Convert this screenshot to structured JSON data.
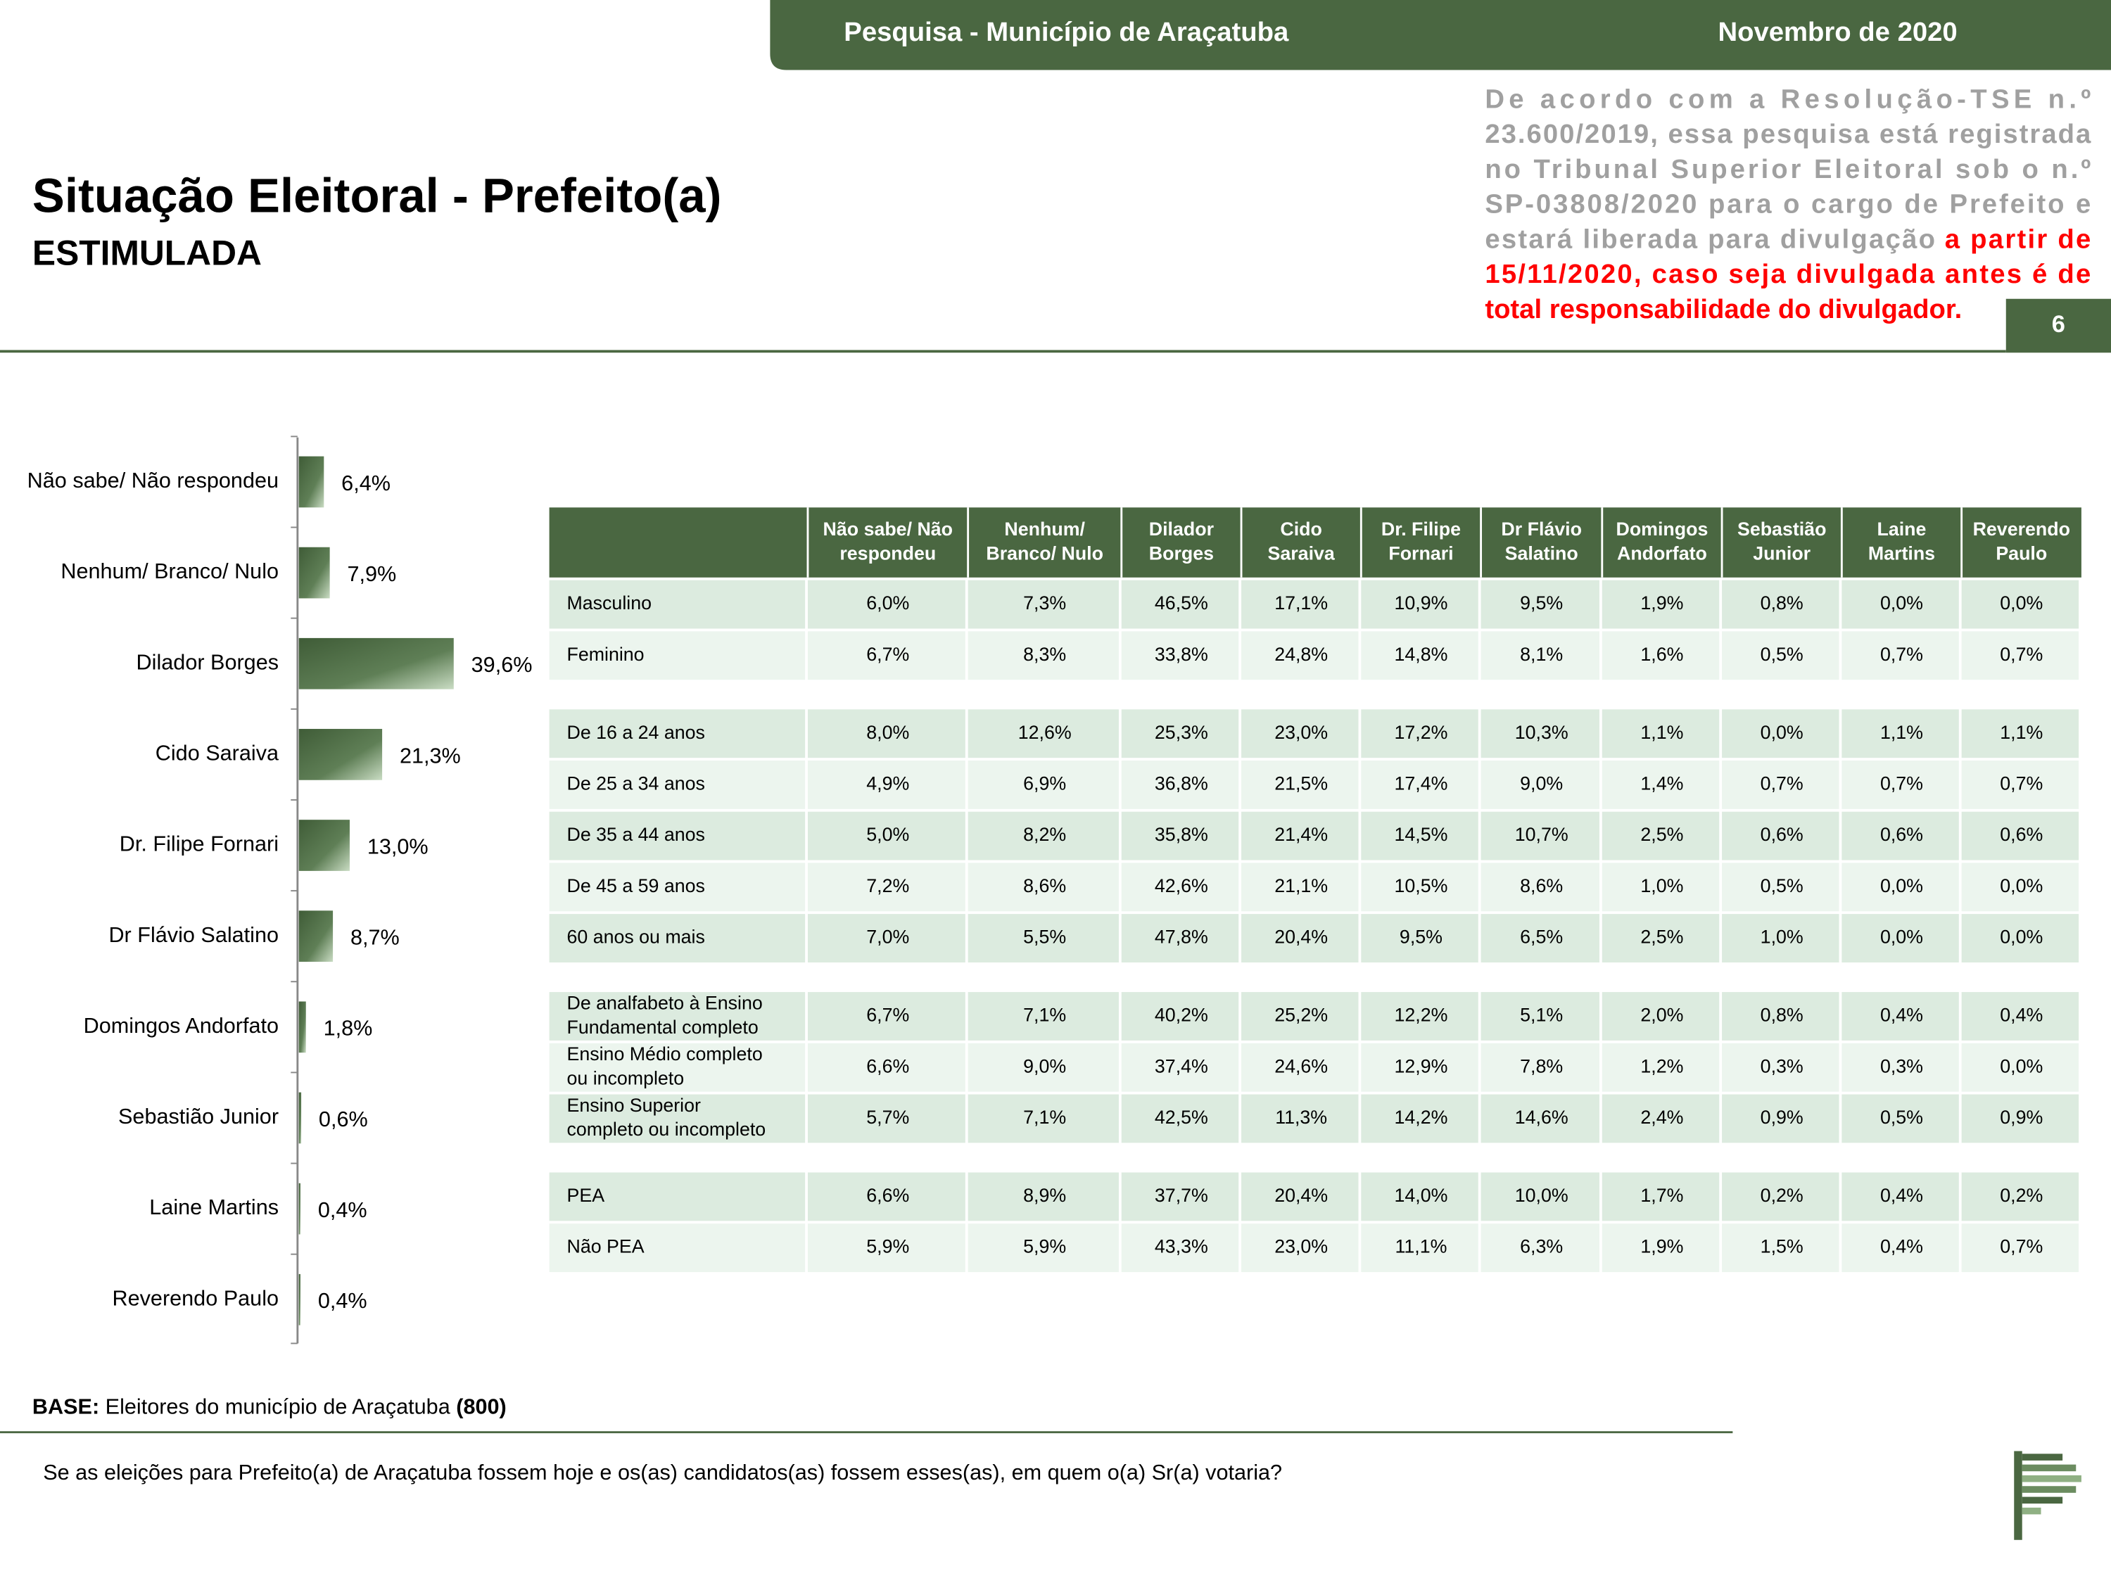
{
  "header": {
    "left": "Pesquisa - Município de Araçatuba",
    "right": "Novembro de 2020"
  },
  "title": "Situação Eleitoral - Prefeito(a)",
  "subtitle": "ESTIMULADA",
  "notice": {
    "lines": [
      [
        {
          "text": "De acordo com a Resolução-TSE n.º",
          "color": "#a0a0a0"
        }
      ],
      [
        {
          "text": "23.600/2019, essa pesquisa está registrada",
          "color": "#a0a0a0"
        }
      ],
      [
        {
          "text": "no Tribunal Superior Eleitoral sob o n.º",
          "color": "#a0a0a0"
        }
      ],
      [
        {
          "text": "SP-03808/2020 para o cargo de Prefeito e",
          "color": "#a0a0a0"
        }
      ],
      [
        {
          "text": "estará liberada para divulgação",
          "color": "#a0a0a0"
        },
        {
          "text": "a partir de",
          "color": "#ff0000"
        }
      ],
      [
        {
          "text": "15/11/2020, caso seja divulgada antes é de",
          "color": "#ff0000"
        }
      ],
      [
        {
          "text": "total responsabilidade do divulgador.",
          "color": "#ff0000"
        }
      ]
    ]
  },
  "page_number": "6",
  "chart_data": {
    "type": "bar",
    "orientation": "horizontal",
    "categories": [
      "Não sabe/ Não respondeu",
      "Nenhum/ Branco/ Nulo",
      "Dilador Borges",
      "Cido Saraiva",
      "Dr. Filipe Fornari",
      "Dr Flávio Salatino",
      "Domingos Andorfato",
      "Sebastião Junior",
      "Laine Martins",
      "Reverendo Paulo"
    ],
    "values": [
      6.4,
      7.9,
      39.6,
      21.3,
      13.0,
      8.7,
      1.8,
      0.6,
      0.4,
      0.4
    ],
    "value_labels": [
      "6,4%",
      "7,9%",
      "39,6%",
      "21,3%",
      "13,0%",
      "8,7%",
      "1,8%",
      "0,6%",
      "0,4%",
      "0,4%"
    ],
    "color": "#4a6741"
  },
  "table": {
    "columns": [
      [
        "Não sabe/ Não",
        "respondeu"
      ],
      [
        "Nenhum/",
        "Branco/ Nulo"
      ],
      [
        "Dilador",
        "Borges"
      ],
      [
        "Cido",
        "Saraiva"
      ],
      [
        "Dr. Filipe",
        "Fornari"
      ],
      [
        "Dr Flávio",
        "Salatino"
      ],
      [
        "Domingos",
        "Andorfato"
      ],
      [
        "Sebastião",
        "Junior"
      ],
      [
        "Laine",
        "Martins"
      ],
      [
        "Reverendo",
        "Paulo"
      ]
    ],
    "groups": [
      [
        {
          "label": [
            "Masculino"
          ],
          "cells": [
            "6,0%",
            "7,3%",
            "46,5%",
            "17,1%",
            "10,9%",
            "9,5%",
            "1,9%",
            "0,8%",
            "0,0%",
            "0,0%"
          ]
        },
        {
          "label": [
            "Feminino"
          ],
          "cells": [
            "6,7%",
            "8,3%",
            "33,8%",
            "24,8%",
            "14,8%",
            "8,1%",
            "1,6%",
            "0,5%",
            "0,7%",
            "0,7%"
          ]
        }
      ],
      [
        {
          "label": [
            "De 16 a 24 anos"
          ],
          "cells": [
            "8,0%",
            "12,6%",
            "25,3%",
            "23,0%",
            "17,2%",
            "10,3%",
            "1,1%",
            "0,0%",
            "1,1%",
            "1,1%"
          ]
        },
        {
          "label": [
            "De 25 a 34 anos"
          ],
          "cells": [
            "4,9%",
            "6,9%",
            "36,8%",
            "21,5%",
            "17,4%",
            "9,0%",
            "1,4%",
            "0,7%",
            "0,7%",
            "0,7%"
          ]
        },
        {
          "label": [
            "De 35 a 44 anos"
          ],
          "cells": [
            "5,0%",
            "8,2%",
            "35,8%",
            "21,4%",
            "14,5%",
            "10,7%",
            "2,5%",
            "0,6%",
            "0,6%",
            "0,6%"
          ]
        },
        {
          "label": [
            "De 45 a 59 anos"
          ],
          "cells": [
            "7,2%",
            "8,6%",
            "42,6%",
            "21,1%",
            "10,5%",
            "8,6%",
            "1,0%",
            "0,5%",
            "0,0%",
            "0,0%"
          ]
        },
        {
          "label": [
            "60 anos ou mais"
          ],
          "cells": [
            "7,0%",
            "5,5%",
            "47,8%",
            "20,4%",
            "9,5%",
            "6,5%",
            "2,5%",
            "1,0%",
            "0,0%",
            "0,0%"
          ]
        }
      ],
      [
        {
          "label": [
            "De analfabeto à Ensino",
            "Fundamental completo"
          ],
          "cells": [
            "6,7%",
            "7,1%",
            "40,2%",
            "25,2%",
            "12,2%",
            "5,1%",
            "2,0%",
            "0,8%",
            "0,4%",
            "0,4%"
          ]
        },
        {
          "label": [
            "Ensino Médio completo",
            "ou incompleto"
          ],
          "cells": [
            "6,6%",
            "9,0%",
            "37,4%",
            "24,6%",
            "12,9%",
            "7,8%",
            "1,2%",
            "0,3%",
            "0,3%",
            "0,0%"
          ]
        },
        {
          "label": [
            "Ensino Superior",
            "completo ou incompleto"
          ],
          "cells": [
            "5,7%",
            "7,1%",
            "42,5%",
            "11,3%",
            "14,2%",
            "14,6%",
            "2,4%",
            "0,9%",
            "0,5%",
            "0,9%"
          ]
        }
      ],
      [
        {
          "label": [
            "PEA"
          ],
          "cells": [
            "6,6%",
            "8,9%",
            "37,7%",
            "20,4%",
            "14,0%",
            "10,0%",
            "1,7%",
            "0,2%",
            "0,4%",
            "0,2%"
          ]
        },
        {
          "label": [
            "Não PEA"
          ],
          "cells": [
            "5,9%",
            "5,9%",
            "43,3%",
            "23,0%",
            "11,1%",
            "6,3%",
            "1,9%",
            "1,5%",
            "0,4%",
            "0,7%"
          ]
        }
      ]
    ]
  },
  "base": {
    "label": "BASE:",
    "text": "Eleitores do município de Araçatuba",
    "count": "(800)"
  },
  "question": "Se as eleições para Prefeito(a) de Araçatuba fossem hoje e os(as) candidatos(as) fossem esses(as), em quem o(a) Sr(a) votaria?"
}
